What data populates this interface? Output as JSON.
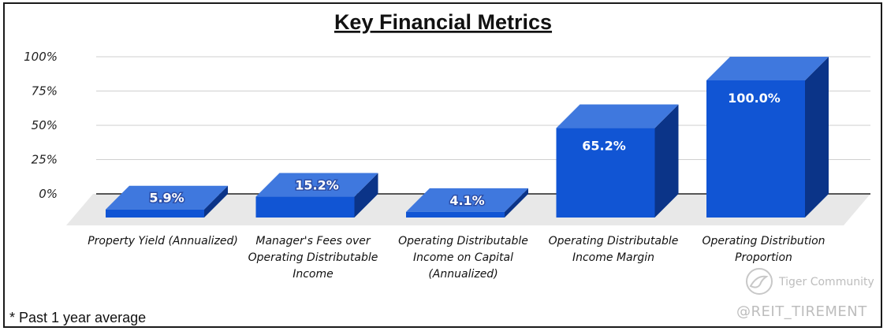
{
  "chart_data": {
    "type": "bar",
    "title": "Key Financial Metrics",
    "categories": [
      [
        "Property Yield (Annualized)"
      ],
      [
        "Manager's Fees over",
        "Operating Distributable",
        "Income"
      ],
      [
        "Operating Distributable",
        "Income on Capital",
        "(Annualized)"
      ],
      [
        "Operating Distributable",
        "Income Margin"
      ],
      [
        "Operating Distribution",
        "Proportion"
      ]
    ],
    "values": [
      5.9,
      15.2,
      4.1,
      65.2,
      100.0
    ],
    "data_labels": [
      "5.9%",
      "15.2%",
      "4.1%",
      "65.2%",
      "100.0%"
    ],
    "ylim": [
      0,
      100
    ],
    "yticks": [
      0,
      25,
      50,
      75,
      100
    ],
    "ytick_labels": [
      "0%",
      "25%",
      "50%",
      "75%",
      "100%"
    ],
    "xlabel": "",
    "ylabel": "",
    "grid": true,
    "legend": "none",
    "bar_color": "#1155d4",
    "bar_top_color": "#3f78de",
    "bar_side_color": "#0b3488"
  },
  "footnote": "* Past 1 year average",
  "watermark": {
    "brand": "Tiger Community",
    "handle": "@REIT_TIREMENT"
  }
}
